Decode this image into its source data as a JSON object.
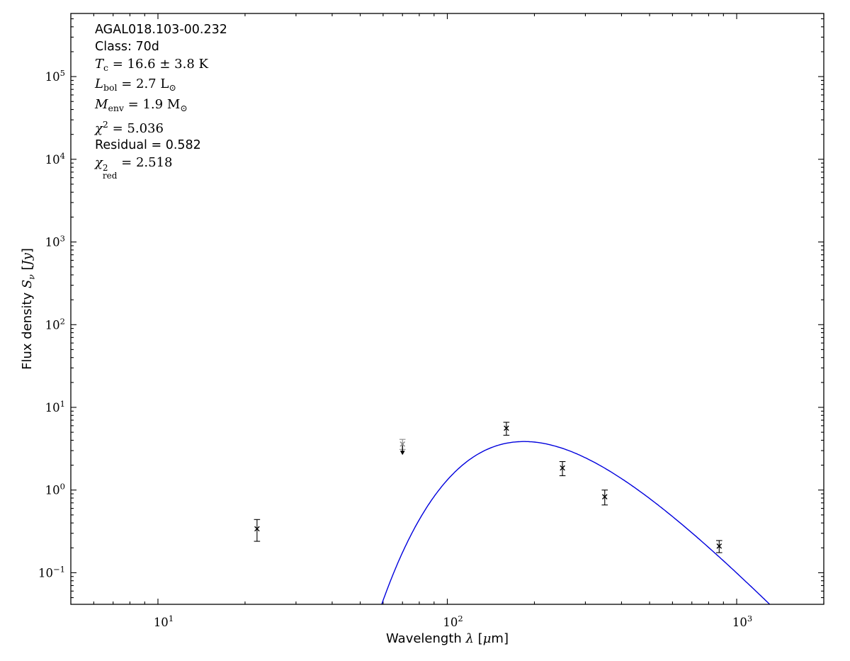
{
  "chart_data": {
    "type": "scatter",
    "title": "",
    "source_name": "AGAL018.103-00.232",
    "class_label": "Class: 70d",
    "fit_results": {
      "T_c_K": "16.6 ± 3.8",
      "L_bol_Lsun": "2.7",
      "M_env_Msun": "1.9",
      "chi2": "5.036",
      "residual": "0.582",
      "chi2_red": "2.518"
    },
    "annotation_lines": [
      [
        {
          "t": "AGAL018.103-00.232",
          "s": "sans"
        }
      ],
      [
        {
          "t": "Class: 70d",
          "s": "sans"
        }
      ],
      [
        {
          "t": "T",
          "s": "it"
        },
        {
          "t": "c",
          "s": "sub"
        },
        {
          "t": " = 16.6 ± 3.8 K",
          "s": "rm"
        }
      ],
      [
        {
          "t": "L",
          "s": "it"
        },
        {
          "t": "bol",
          "s": "sub"
        },
        {
          "t": " = 2.7 L",
          "s": "rm"
        },
        {
          "t": "⊙",
          "s": "sub"
        }
      ],
      [
        {
          "t": "M",
          "s": "it"
        },
        {
          "t": "env",
          "s": "sub"
        },
        {
          "t": " = 1.9 M",
          "s": "rm"
        },
        {
          "t": "⊙",
          "s": "sub"
        }
      ],
      [
        {
          "t": "χ",
          "s": "it"
        },
        {
          "t": "2",
          "s": "sup"
        },
        {
          "t": " = 5.036",
          "s": "rm"
        }
      ],
      [
        {
          "t": "Residual = 0.582",
          "s": "sans"
        }
      ],
      [
        {
          "t": "χ",
          "s": "it"
        },
        {
          "t": "2|red",
          "s": "supsub"
        },
        {
          "t": " = 2.518",
          "s": "rm"
        }
      ]
    ],
    "xlabel_segments": [
      {
        "t": "Wavelength ",
        "s": "sans"
      },
      {
        "t": "λ",
        "s": "it"
      },
      {
        "t": " [",
        "s": "sans"
      },
      {
        "t": "μ",
        "s": "it"
      },
      {
        "t": "m]",
        "s": "sans"
      }
    ],
    "ylabel_segments": [
      {
        "t": "Flux density ",
        "s": "sans"
      },
      {
        "t": "S",
        "s": "it"
      },
      {
        "t": "ν",
        "s": "subit"
      },
      {
        "t": " [",
        "s": "sans"
      },
      {
        "t": "Jy",
        "s": "it"
      },
      {
        "t": "]",
        "s": "sans"
      }
    ],
    "xlim": [
      5,
      2000
    ],
    "ylim": [
      0.0415,
      580000
    ],
    "grid": false,
    "x_major_tick_exponents": [
      1,
      2,
      3
    ],
    "y_major_tick_exponents": [
      -1,
      0,
      1,
      2,
      3,
      4,
      5
    ],
    "points": [
      {
        "wavelength_um": 22,
        "flux_jy": 0.34,
        "err_jy": 0.1,
        "color": "#000000",
        "marker": "x",
        "upper_limit": false
      },
      {
        "wavelength_um": 70,
        "flux_jy": 3.6,
        "err_jy": 0.5,
        "color": "#888888",
        "marker": "x",
        "upper_limit": true
      },
      {
        "wavelength_um": 160,
        "flux_jy": 5.6,
        "err_jy": 1.0,
        "color": "#000000",
        "marker": "x",
        "upper_limit": false
      },
      {
        "wavelength_um": 250,
        "flux_jy": 1.85,
        "err_jy": 0.36,
        "color": "#000000",
        "marker": "x",
        "upper_limit": false
      },
      {
        "wavelength_um": 350,
        "flux_jy": 0.83,
        "err_jy": 0.17,
        "color": "#000000",
        "marker": "x",
        "upper_limit": false
      },
      {
        "wavelength_um": 870,
        "flux_jy": 0.21,
        "err_jy": 0.035,
        "color": "#000000",
        "marker": "x",
        "upper_limit": false
      }
    ],
    "model_curve": {
      "type": "greybody",
      "T_K": 16.6,
      "beta": 1.75,
      "peak_flux_jy": 3.86,
      "lambda_range_um": [
        48,
        1500
      ],
      "color": "#0000dd"
    },
    "colors": {
      "frame": "#000000",
      "background": "#ffffff",
      "upper_limit_arrow": "#000000"
    }
  }
}
